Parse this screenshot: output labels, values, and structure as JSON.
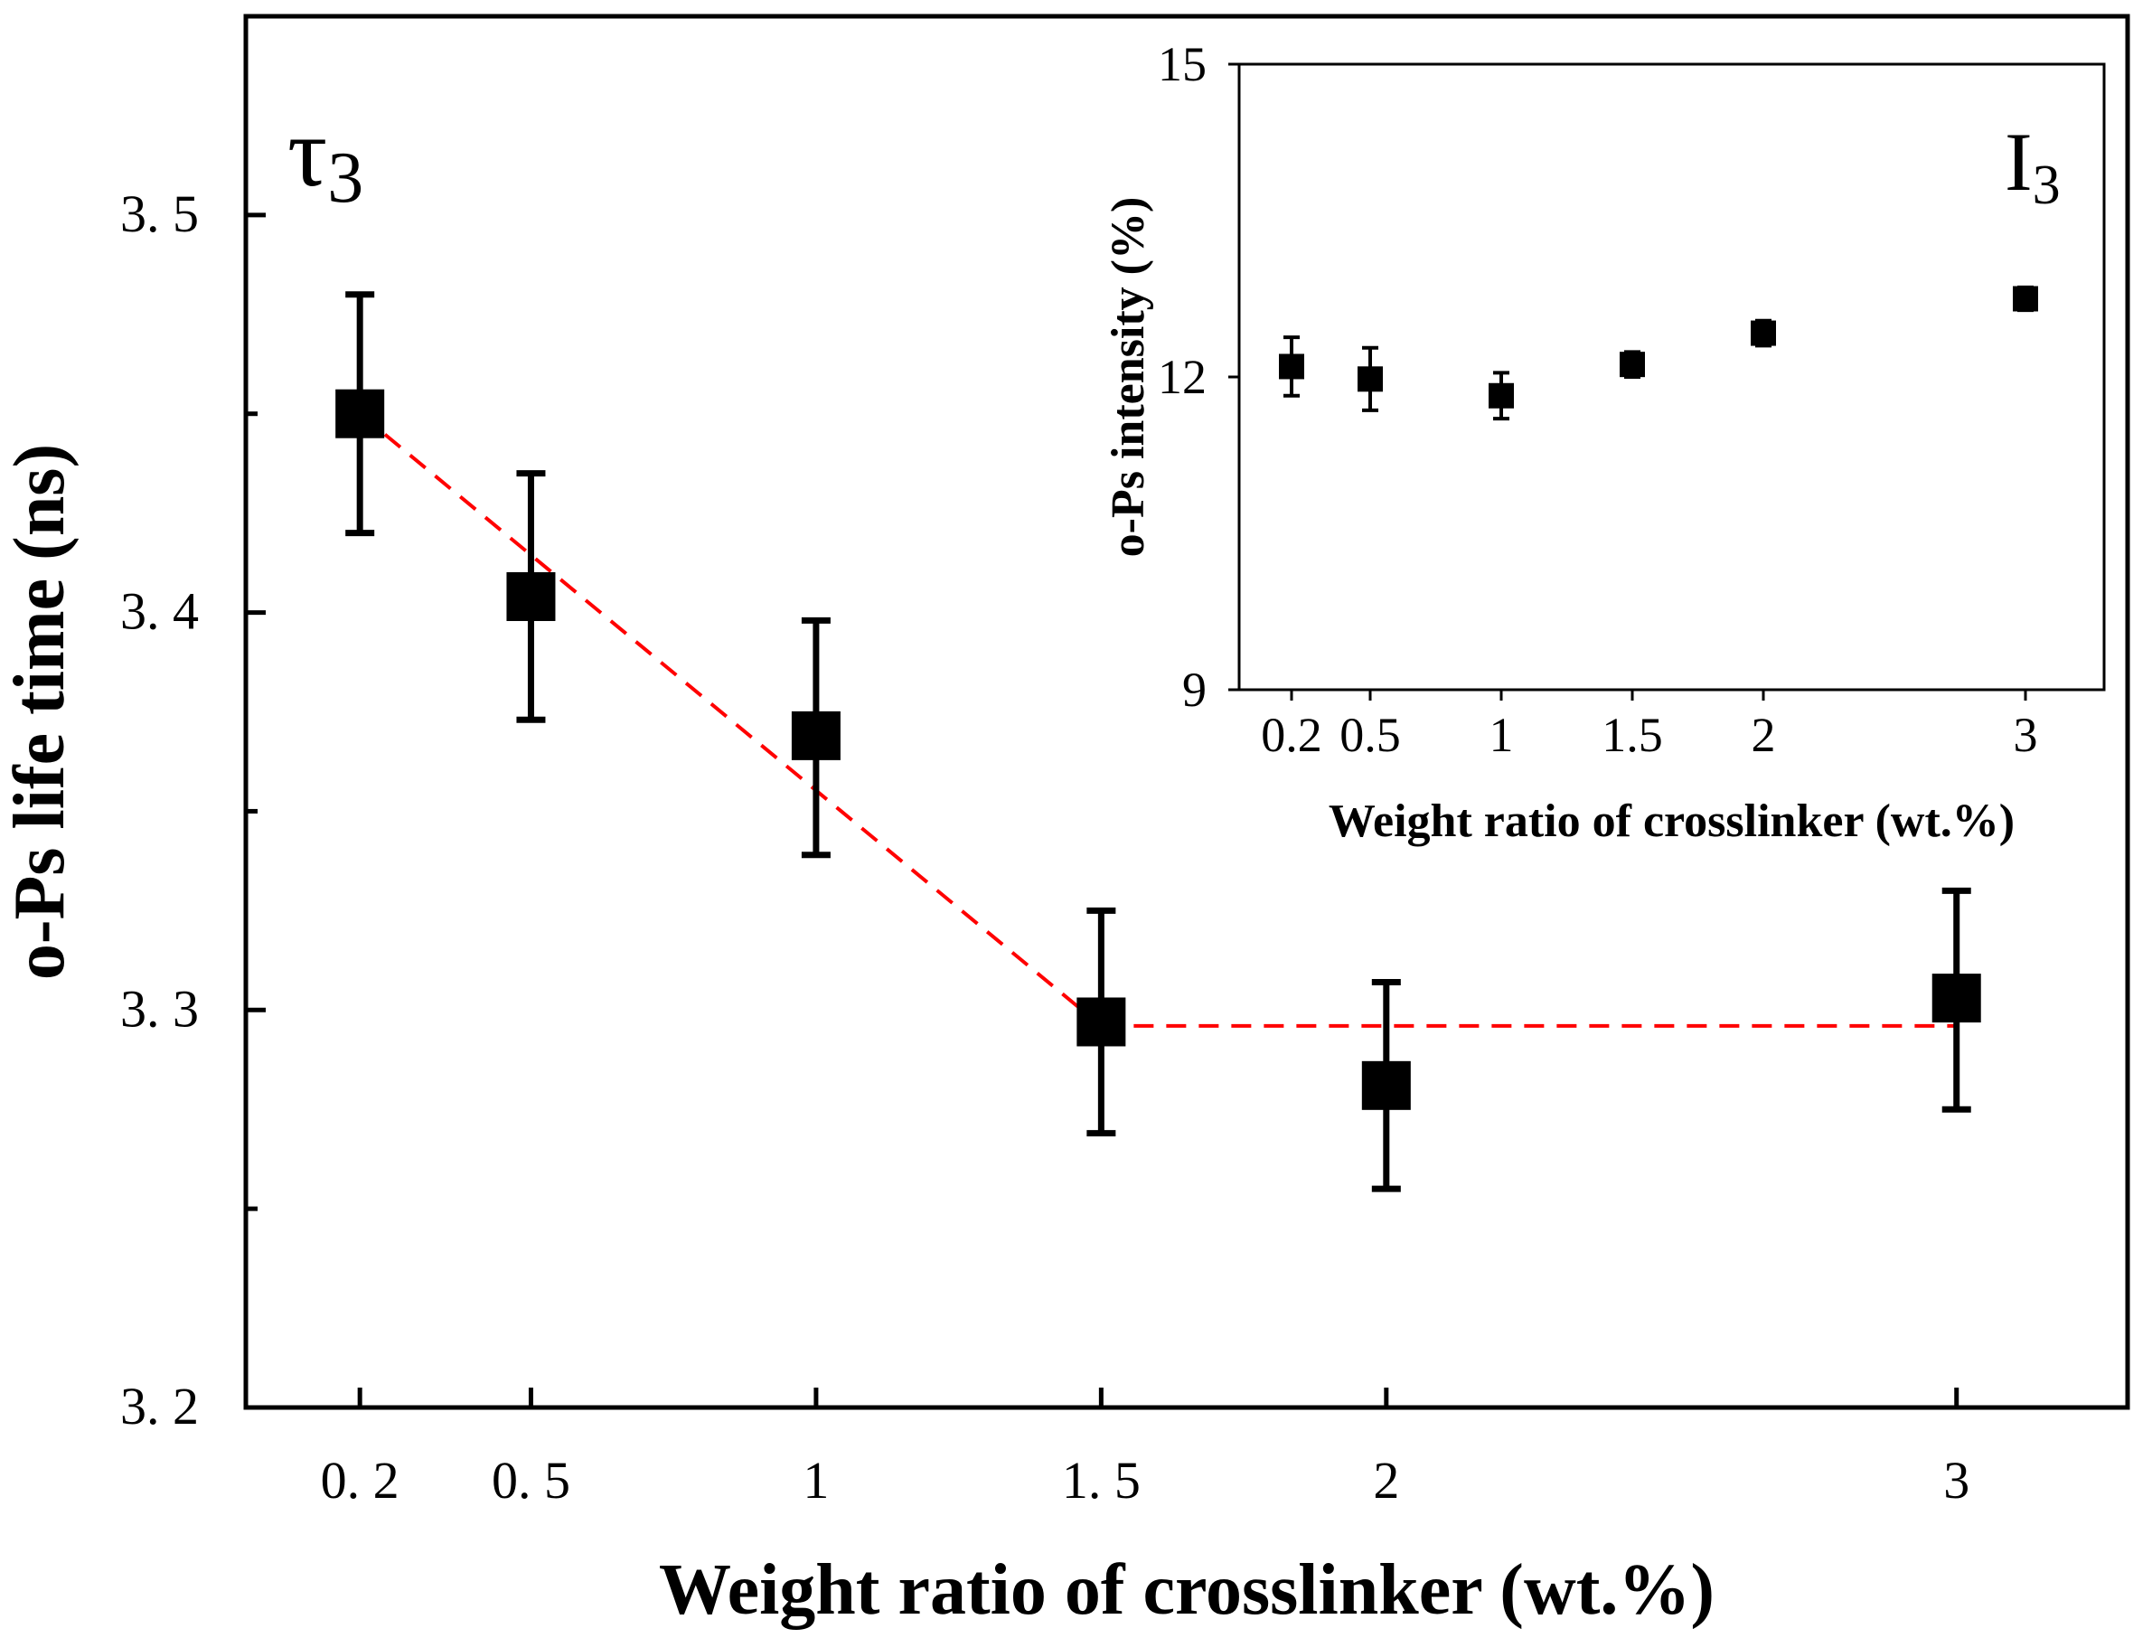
{
  "chart_data": [
    {
      "type": "scatter",
      "panel_label": {
        "base": "τ",
        "subscript": "3"
      },
      "xlabel": "Weight ratio of crosslinker (wt.%)",
      "ylabel": "o-Ps life time (ns)",
      "x": [
        0.2,
        0.5,
        1,
        1.5,
        2,
        3
      ],
      "x_tick_labels": [
        "0. 2",
        "0. 5",
        "1",
        "1. 5",
        "2",
        "3"
      ],
      "y_ticks": [
        3.2,
        3.3,
        3.4,
        3.5
      ],
      "y_tick_labels": [
        "3. 2",
        "3. 3",
        "3. 4",
        "3. 5"
      ],
      "ylim": [
        3.2,
        3.55
      ],
      "xlim": [
        0,
        3.3
      ],
      "series": [
        {
          "name": "tau3",
          "values": [
            3.45,
            3.404,
            3.369,
            3.297,
            3.281,
            3.303
          ],
          "error_upper": [
            3.48,
            3.435,
            3.398,
            3.325,
            3.307,
            3.33
          ],
          "error_lower": [
            3.42,
            3.373,
            3.339,
            3.269,
            3.255,
            3.275
          ],
          "color": "#000000"
        }
      ],
      "trend_lines": [
        {
          "x": [
            0.2,
            1.5
          ],
          "y": [
            3.45,
            3.296
          ],
          "color": "#ff0000",
          "style": "dashed"
        },
        {
          "x": [
            1.5,
            3
          ],
          "y": [
            3.296,
            3.296
          ],
          "color": "#ff0000",
          "style": "dashed"
        }
      ]
    },
    {
      "type": "scatter",
      "panel_label": {
        "base": "I",
        "subscript": "3"
      },
      "xlabel": "Weight ratio of crosslinker (wt.%)",
      "ylabel": "o-Ps intensity (%)",
      "x": [
        0.2,
        0.5,
        1,
        1.5,
        2,
        3
      ],
      "x_tick_labels": [
        "0.2",
        "0.5",
        "1",
        "1.5",
        "2",
        "3"
      ],
      "y_ticks": [
        9,
        12,
        15
      ],
      "y_tick_labels": [
        "9",
        "12",
        "15"
      ],
      "ylim": [
        9,
        15
      ],
      "xlim": [
        0,
        3.3
      ],
      "series": [
        {
          "name": "I3",
          "values": [
            12.1,
            11.98,
            11.82,
            12.12,
            12.42,
            12.75
          ],
          "error_upper": [
            12.38,
            12.28,
            12.04,
            12.24,
            12.54,
            12.86
          ],
          "error_lower": [
            11.82,
            11.68,
            11.6,
            12.0,
            12.3,
            12.64
          ],
          "color": "#000000"
        }
      ]
    }
  ]
}
